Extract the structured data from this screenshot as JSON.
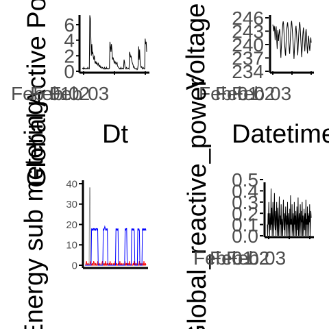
{
  "chart_data": [
    {
      "type": "line",
      "xlabel": "Dt",
      "ylabel": "Global Active Power",
      "ylim": [
        0,
        8
      ],
      "yticks": [
        0,
        2,
        4,
        6
      ],
      "xtick_labels": [
        "Feb 01",
        "Feb 02",
        "Feb 03"
      ],
      "series_color": "#000000",
      "series": [
        {
          "values": [
            0.3,
            0.4,
            0.3,
            0.5,
            0.3,
            0.4,
            0.3,
            0.3,
            0.4,
            0.3,
            0.3,
            0.5,
            0.4,
            0.3,
            0.3,
            7.2,
            6.8,
            4.5,
            2.0,
            3.5,
            2.2,
            2.5,
            1.8,
            1.5,
            2.0,
            1.2,
            1.0,
            1.3,
            0.9,
            1.1,
            1.0,
            0.8,
            1.0,
            0.7,
            0.6,
            0.8,
            0.5,
            0.6,
            0.5,
            0.4,
            0.5,
            0.4,
            0.3,
            0.4,
            0.5,
            0.3,
            0.4,
            0.3,
            0.5,
            0.3,
            0.3,
            0.4,
            0.3,
            0.3,
            0.4,
            3.8,
            3.2,
            2.5,
            3.5,
            2.8,
            1.5,
            1.8,
            1.6,
            1.2,
            1.0,
            1.3,
            1.1,
            0.9,
            1.0,
            1.2,
            0.7,
            0.6,
            0.5,
            0.4,
            0.3,
            0.4,
            0.3,
            0.5,
            0.3,
            0.3,
            0.4,
            0.3,
            0.3,
            1.5,
            1.2,
            0.5,
            0.4,
            0.3,
            0.5,
            0.4,
            0.3,
            0.3,
            0.4,
            0.3,
            2.5,
            2.2,
            1.8,
            2.0,
            1.5,
            1.2,
            1.0,
            0.8,
            0.5,
            0.6,
            0.4,
            0.3,
            0.3,
            0.4,
            0.3,
            0.2,
            0.3,
            0.8,
            3.2,
            1.5,
            2.8,
            1.2,
            0.7,
            0.5,
            0.6,
            0.4,
            0.3,
            0.5,
            0.4,
            0.3,
            0.3,
            4.2,
            3.5,
            3.8,
            2.5
          ]
        }
      ]
    },
    {
      "type": "line",
      "xlabel": "Datetime",
      "ylabel": "Voltage",
      "ylim": [
        234,
        246
      ],
      "yticks": [
        234,
        237,
        240,
        243,
        246
      ],
      "xtick_labels": [
        "Feb 01",
        "Feb 02",
        "Feb 03"
      ],
      "series_color": "#000000",
      "series": [
        {
          "values": [
            244.5,
            244.0,
            243.5,
            243.0,
            244.2,
            243.8,
            242.5,
            241.0,
            242.8,
            243.6,
            244.1,
            242.2,
            240.5,
            239.0,
            241.5,
            243.2,
            242.0,
            240.8,
            241.9,
            242.6,
            243.5,
            242.9,
            241.1,
            238.5,
            237.0,
            238.8,
            240.2,
            241.7,
            242.4,
            243.9,
            244.8,
            245.2,
            244.6,
            243.1,
            241.8,
            240.0,
            239.2,
            238.0,
            237.5,
            239.8,
            241.2,
            242.9,
            243.8,
            244.5,
            245.0,
            244.1,
            243.0,
            241.6,
            240.1,
            238.7,
            237.9,
            239.5,
            241.0,
            242.7,
            243.6,
            244.9,
            245.3,
            244.4,
            243.2,
            241.9,
            240.6,
            239.4,
            238.2,
            236.8,
            238.1,
            239.9,
            241.4,
            242.8,
            243.7,
            244.2,
            243.1,
            241.8,
            240.3,
            238.9,
            237.6,
            238.8,
            240.5,
            242.1,
            243.4,
            244.6,
            245.1,
            244.3,
            242.9,
            241.2,
            239.8,
            238.4,
            237.2,
            238.6,
            240.2,
            241.9,
            243.0,
            243.8,
            242.5,
            241.1,
            239.7,
            238.5,
            239.9,
            241.4,
            242.8,
            243.5,
            242.2,
            240.6,
            239.1,
            238.0,
            239.4,
            240.8,
            242.0,
            241.3,
            240.1,
            239.2,
            238.6,
            239.8,
            240.9,
            241.6,
            240.4
          ]
        }
      ]
    },
    {
      "type": "line",
      "xlabel": "",
      "ylabel": "Energy sub metering",
      "ylim": [
        0,
        40
      ],
      "yticks": [
        0,
        10,
        20,
        30,
        40
      ],
      "series": [
        {
          "color": "#999999",
          "values": [
            0,
            0,
            0,
            0,
            1,
            0,
            0,
            0,
            0,
            38,
            38,
            1,
            0,
            0,
            0,
            1,
            0,
            0,
            0,
            0,
            1,
            0,
            0,
            0,
            1,
            0,
            0,
            0,
            0,
            1,
            0,
            0,
            0,
            0,
            1,
            0,
            0,
            0,
            1,
            0,
            0,
            0,
            0,
            1,
            0,
            0,
            0,
            0,
            1,
            0,
            0,
            0,
            0,
            1,
            0,
            0,
            0,
            1,
            0,
            0,
            0,
            1,
            0,
            0,
            0,
            0,
            1,
            0,
            0,
            0,
            0,
            1,
            0,
            0,
            0,
            1,
            0,
            0,
            0,
            0,
            1,
            0,
            0,
            0,
            0,
            1,
            0,
            0,
            0,
            0,
            1,
            0,
            0,
            0,
            0,
            1,
            0,
            0,
            0,
            0,
            1,
            0,
            0,
            0,
            0,
            1,
            0,
            0,
            0,
            0,
            1,
            0,
            0,
            0,
            0,
            1,
            0,
            0,
            0,
            0
          ]
        },
        {
          "color": "#ff0000",
          "values": [
            0,
            0,
            1,
            2,
            0,
            0,
            1,
            0,
            0,
            0,
            1,
            2,
            0,
            0,
            1,
            0,
            0,
            2,
            1,
            0,
            0,
            1,
            0,
            0,
            0,
            2,
            1,
            0,
            0,
            1,
            0,
            0,
            0,
            1,
            2,
            0,
            0,
            1,
            0,
            0,
            2,
            0,
            0,
            1,
            0,
            0,
            0,
            1,
            0,
            2,
            0,
            0,
            1,
            0,
            0,
            0,
            1,
            0,
            0,
            2,
            0,
            0,
            1,
            0,
            0,
            1,
            0,
            0,
            2,
            0,
            0,
            1,
            0,
            0,
            1,
            0,
            0,
            0,
            2,
            0,
            0,
            1,
            0,
            0,
            1,
            0,
            0,
            2,
            0,
            0,
            1,
            0,
            0,
            0,
            1,
            0,
            2,
            0,
            0,
            1,
            0,
            0,
            1,
            0,
            0,
            0,
            2,
            0,
            0,
            1,
            0,
            0,
            1,
            0,
            0,
            2,
            0,
            0,
            1,
            0
          ]
        },
        {
          "color": "#0000ff",
          "values": [
            0,
            0,
            0,
            0,
            0,
            0,
            0,
            0,
            0,
            0,
            0,
            0,
            0,
            18,
            17,
            18,
            17,
            18,
            18,
            17,
            18,
            17,
            18,
            18,
            17,
            18,
            0,
            0,
            0,
            0,
            0,
            0,
            0,
            0,
            0,
            0,
            18,
            17,
            18,
            19,
            18,
            17,
            18,
            17,
            18,
            0,
            0,
            0,
            0,
            0,
            0,
            0,
            0,
            0,
            0,
            0,
            0,
            0,
            0,
            0,
            0,
            18,
            17,
            18,
            17,
            18,
            0,
            0,
            0,
            0,
            0,
            0,
            0,
            0,
            0,
            0,
            0,
            0,
            0,
            18,
            17,
            18,
            18,
            0,
            0,
            0,
            0,
            0,
            0,
            0,
            0,
            0,
            18,
            17,
            18,
            17,
            18,
            17,
            0,
            0,
            0,
            0,
            0,
            0,
            18,
            17,
            18,
            17,
            0,
            0,
            0,
            0,
            0,
            18,
            17,
            18,
            17,
            18,
            17,
            18,
            17
          ]
        }
      ]
    },
    {
      "type": "line",
      "xlabel": "Datetime",
      "ylabel": "Global_reactive_power",
      "ylim": [
        0,
        0.5
      ],
      "yticks": [
        0.0,
        0.1,
        0.2,
        0.3,
        0.4,
        0.5
      ],
      "xtick_labels": [
        "Feb 01",
        "Feb 02",
        "Feb 03"
      ],
      "series_color": "#000000",
      "series": [
        {
          "values": [
            0.1,
            0.0,
            0.2,
            0.1,
            0.3,
            0.1,
            0.0,
            0.2,
            0.1,
            0.05,
            0.42,
            0.1,
            0.25,
            0.0,
            0.15,
            0.3,
            0.1,
            0.0,
            0.2,
            0.38,
            0.1,
            0.05,
            0.22,
            0.0,
            0.15,
            0.3,
            0.1,
            0.0,
            0.25,
            0.12,
            0.0,
            0.2,
            0.35,
            0.1,
            0.0,
            0.18,
            0.1,
            0.28,
            0.0,
            0.15,
            0.1,
            0.0,
            0.22,
            0.32,
            0.1,
            0.05,
            0.2,
            0.0,
            0.14,
            0.26,
            0.1,
            0.0,
            0.18,
            0.1,
            0.3,
            0.0,
            0.12,
            0.2,
            0.08,
            0.0,
            0.24,
            0.1,
            0.36,
            0.0,
            0.15,
            0.1,
            0.28,
            0.05,
            0.0,
            0.2,
            0.12,
            0.0,
            0.3,
            0.1,
            0.18,
            0.0,
            0.22,
            0.1,
            0.0,
            0.26,
            0.14,
            0.05,
            0.34,
            0.0,
            0.1,
            0.2,
            0.0,
            0.16,
            0.28,
            0.1,
            0.0,
            0.22,
            0.12,
            0.3,
            0.0,
            0.18,
            0.1,
            0.0,
            0.24,
            0.14,
            0.05,
            0.2,
            0.0,
            0.32,
            0.1,
            0.15,
            0.0,
            0.26,
            0.1,
            0.2,
            0.0,
            0.18,
            0.12,
            0.28,
            0.0,
            0.1,
            0.22,
            0.16
          ]
        }
      ]
    }
  ]
}
